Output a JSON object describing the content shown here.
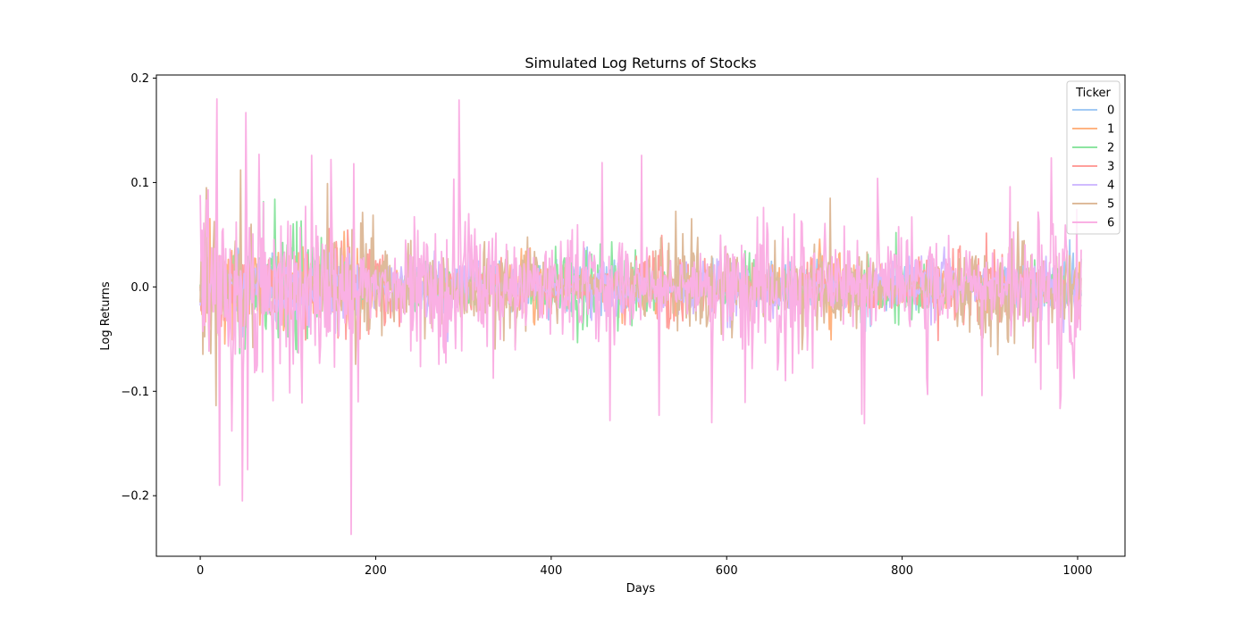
{
  "chart_data": {
    "type": "line",
    "title": "Simulated Log Returns of Stocks",
    "xlabel": "Days",
    "ylabel": "Log Returns",
    "xlim": [
      -50,
      1054
    ],
    "ylim": [
      -0.258,
      0.203
    ],
    "x_ticks": [
      0,
      200,
      400,
      600,
      800,
      1000
    ],
    "x_tick_labels": [
      "0",
      "200",
      "400",
      "600",
      "800",
      "1000"
    ],
    "y_ticks": [
      -0.2,
      -0.1,
      0.0,
      0.1,
      0.2
    ],
    "y_tick_labels": [
      "−0.2",
      "−0.1",
      "0.0",
      "0.1",
      "0.2"
    ],
    "grid": false,
    "legend": {
      "title": "Ticker",
      "placement": "top-right"
    },
    "n_days": 1005,
    "series": [
      {
        "name": "0",
        "color": "#a1c9f4",
        "volatility": 0.01,
        "spikes": []
      },
      {
        "name": "1",
        "color": "#ffb482",
        "volatility": 0.011,
        "spikes": []
      },
      {
        "name": "2",
        "color": "#8de5a1",
        "volatility": 0.011,
        "spikes": [
          [
            109,
            -0.06
          ],
          [
            92,
            0.035
          ]
        ]
      },
      {
        "name": "3",
        "color": "#ff9f9b",
        "volatility": 0.012,
        "spikes": []
      },
      {
        "name": "4",
        "color": "#d0bbff",
        "volatility": 0.011,
        "spikes": [
          [
            838,
            -0.032
          ]
        ]
      },
      {
        "name": "5",
        "color": "#debb9b",
        "volatility": 0.018,
        "spikes": [
          [
            46,
            0.112
          ],
          [
            145,
            0.099
          ],
          [
            718,
            0.085
          ],
          [
            686,
            -0.06
          ],
          [
            892,
            -0.049
          ]
        ]
      },
      {
        "name": "6",
        "color": "#fab0e4",
        "volatility": 0.028,
        "spikes": [
          [
            19,
            0.18
          ],
          [
            22,
            -0.19
          ],
          [
            48,
            -0.205
          ],
          [
            52,
            0.167
          ],
          [
            54,
            -0.175
          ],
          [
            67,
            0.127
          ],
          [
            36,
            -0.138
          ],
          [
            172,
            -0.237
          ],
          [
            175,
            0.118
          ],
          [
            180,
            -0.11
          ],
          [
            295,
            0.179
          ],
          [
            127,
            0.126
          ],
          [
            149,
            0.122
          ],
          [
            458,
            0.119
          ],
          [
            467,
            -0.128
          ],
          [
            503,
            0.126
          ],
          [
            523,
            -0.123
          ],
          [
            583,
            -0.13
          ],
          [
            754,
            -0.122
          ],
          [
            757,
            -0.131
          ],
          [
            772,
            0.104
          ],
          [
            829,
            -0.103
          ],
          [
            891,
            -0.104
          ],
          [
            923,
            0.096
          ],
          [
            958,
            -0.098
          ],
          [
            9,
            0.093
          ],
          [
            83,
            -0.109
          ]
        ]
      }
    ]
  }
}
